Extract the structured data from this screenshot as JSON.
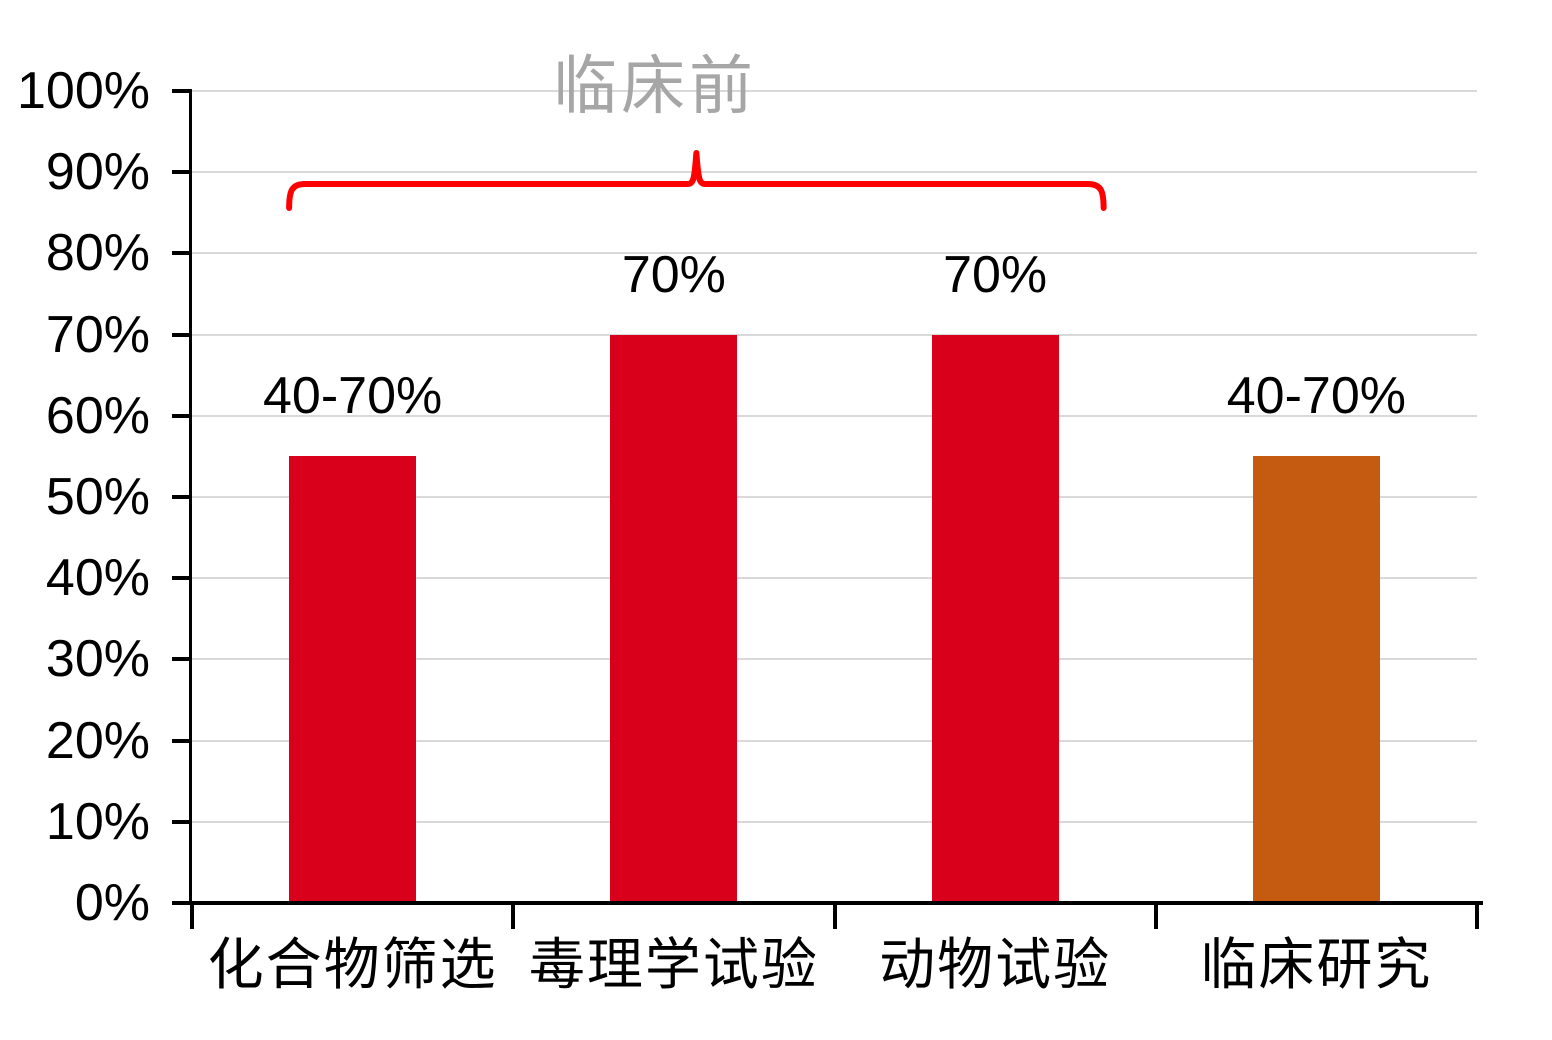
{
  "chart_data": {
    "type": "bar",
    "categories": [
      "化合物筛选",
      "毒理学试验",
      "动物试验",
      "临床研究"
    ],
    "values": [
      55,
      70,
      70,
      55
    ],
    "bar_labels": [
      "40-70%",
      "70%",
      "70%",
      "40-70%"
    ],
    "bar_colors": [
      "#D9001B",
      "#D9001B",
      "#D9001B",
      "#C55A11"
    ],
    "ylim": [
      0,
      100
    ],
    "ytick_step": 10,
    "ytick_labels": [
      "0%",
      "10%",
      "20%",
      "30%",
      "40%",
      "50%",
      "60%",
      "70%",
      "80%",
      "90%",
      "100%"
    ],
    "grid": true,
    "legend": "none",
    "annotation": {
      "label": "临床前",
      "span_categories": [
        "化合物筛选",
        "毒理学试验",
        "动物试验"
      ],
      "span_indices": [
        0,
        2
      ],
      "brace_color": "#FF0000",
      "label_color": "#A6A6A6"
    },
    "colors": {
      "grid": "#D9D9D9",
      "axis": "#000000",
      "text": "#000000"
    }
  }
}
